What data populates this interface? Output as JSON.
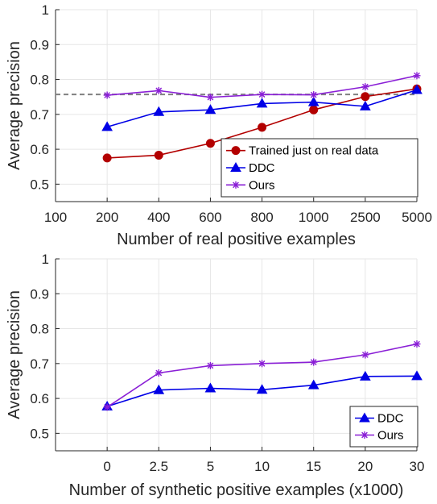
{
  "colors": {
    "trained_real": "#b30000",
    "ddc": "#0000e6",
    "ours": "#8a1fd6",
    "reference_line": "#808080",
    "grid": "#e6e6e6",
    "axis": "#262626"
  },
  "chart_data": [
    {
      "type": "line",
      "xlabel": "Number of real positive examples",
      "ylabel": "Average precision",
      "categories": [
        "100",
        "200",
        "400",
        "600",
        "800",
        "1000",
        "2500",
        "5000"
      ],
      "ylim": [
        0.45,
        1.0
      ],
      "yticks": [
        "0.5",
        "0.6",
        "0.7",
        "0.8",
        "0.9",
        "1"
      ],
      "ytick_values": [
        0.5,
        0.6,
        0.7,
        0.8,
        0.9,
        1.0
      ],
      "grid": true,
      "legend_position": "bottom-right",
      "reference_line": {
        "y": 0.757,
        "style": "dashed"
      },
      "series": [
        {
          "name": "Trained just on real data",
          "marker": "circle",
          "color_key": "trained_real",
          "values": [
            null,
            0.575,
            0.583,
            0.617,
            0.663,
            0.713,
            0.751,
            0.773
          ]
        },
        {
          "name": "DDC",
          "marker": "triangle",
          "color_key": "ddc",
          "values": [
            null,
            0.664,
            0.707,
            0.713,
            0.731,
            0.735,
            0.723,
            0.77
          ]
        },
        {
          "name": "Ours",
          "marker": "star",
          "color_key": "ours",
          "values": [
            null,
            0.755,
            0.768,
            0.749,
            0.757,
            0.756,
            0.779,
            0.811
          ]
        }
      ]
    },
    {
      "type": "line",
      "xlabel": "Number of synthetic positive examples (x1000)",
      "ylabel": "Average precision",
      "categories": [
        "",
        "0",
        "2.5",
        "5",
        "10",
        "15",
        "20",
        "30"
      ],
      "ylim": [
        0.45,
        1.0
      ],
      "yticks": [
        "0.5",
        "0.6",
        "0.7",
        "0.8",
        "0.9",
        "1"
      ],
      "ytick_values": [
        0.5,
        0.6,
        0.7,
        0.8,
        0.9,
        1.0
      ],
      "grid": true,
      "legend_position": "bottom-right",
      "series": [
        {
          "name": "DDC",
          "marker": "triangle",
          "color_key": "ddc",
          "values": [
            null,
            0.577,
            0.624,
            0.629,
            0.625,
            0.638,
            0.663,
            0.664
          ]
        },
        {
          "name": "Ours",
          "marker": "star",
          "color_key": "ours",
          "values": [
            null,
            0.575,
            0.673,
            0.694,
            0.7,
            0.704,
            0.725,
            0.756
          ]
        }
      ]
    }
  ]
}
